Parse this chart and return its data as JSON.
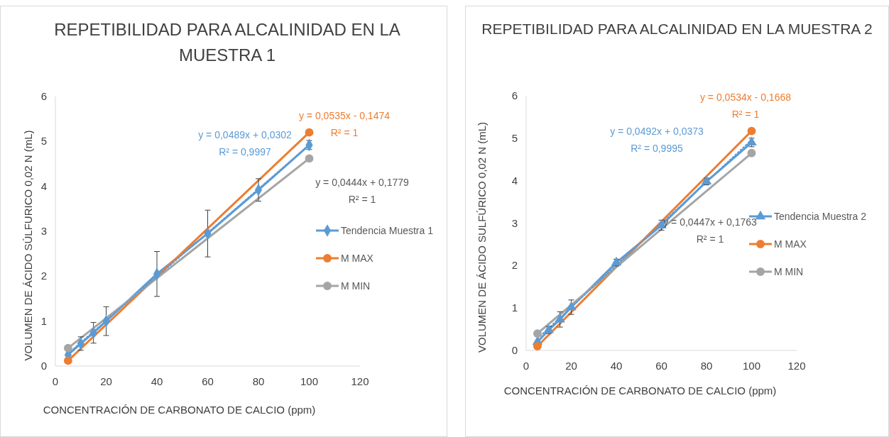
{
  "chart_data": [
    {
      "type": "line",
      "title": "REPETIBILIDAD PARA ALCALINIDAD EN LA MUESTRA 1",
      "xlabel": "CONCENTRACIÓN DE CARBONATO DE CALCIO (ppm)",
      "ylabel": "VOLUMEN DE ÁCIDO SÚLFURICO 0,02 N (mL)",
      "xlim": [
        0,
        120
      ],
      "xticks": [
        0,
        20,
        40,
        60,
        80,
        100,
        120
      ],
      "ylim": [
        0,
        6
      ],
      "yticks": [
        0,
        1,
        2,
        3,
        4,
        5,
        6
      ],
      "grid": false,
      "legend": "right",
      "series": [
        {
          "name": "Tendencia Muestra 1",
          "color": "#5b9bd5",
          "marker": "diamond",
          "x": [
            5,
            10,
            15,
            20,
            40,
            60,
            80,
            100
          ],
          "values": [
            0.25,
            0.5,
            0.74,
            1.0,
            2.05,
            2.95,
            3.92,
            4.92
          ],
          "errors": [
            0.1,
            0.15,
            0.23,
            0.32,
            0.5,
            0.52,
            0.25,
            0.1
          ]
        },
        {
          "name": "M MAX",
          "color": "#ed7d31",
          "marker": "circle",
          "x": [
            5,
            100
          ],
          "values": [
            0.12,
            5.2
          ]
        },
        {
          "name": "M MIN",
          "color": "#a5a5a5",
          "marker": "circle",
          "x": [
            5,
            100
          ],
          "values": [
            0.4,
            4.62
          ]
        },
        {
          "type": "line",
          "color": "#5b9bd5",
          "marker": "none",
          "line_style": "dotted",
          "x": [
            5,
            100
          ],
          "values": [
            0.28,
            4.92
          ]
        }
      ],
      "annotations": [
        "y = 0,0489x + 0,0302\nR² = 0,9997",
        "y = 0,0535x - 0,1474\nR² = 1",
        "y = 0,0444x + 0,1779\nR² = 1"
      ]
    },
    {
      "type": "line",
      "title": "REPETIBILIDAD PARA ALCALINIDAD EN LA MUESTRA 2",
      "xlabel": "CONCENTRACIÓN DE CARBONATO DE CALCIO (ppm)",
      "ylabel": "VOLUMEN DE ÁCIDO SULFÚRICO 0,02 N (mL)",
      "xlim": [
        0,
        120
      ],
      "xticks": [
        0,
        20,
        40,
        60,
        80,
        100,
        120
      ],
      "ylim": [
        0,
        6
      ],
      "yticks": [
        0,
        1,
        2,
        3,
        4,
        5,
        6
      ],
      "grid": false,
      "legend": "right",
      "series": [
        {
          "name": "Tendencia Muestra 2",
          "color": "#5b9bd5",
          "marker": "triangle",
          "x": [
            5,
            10,
            15,
            20,
            40,
            60,
            80,
            100
          ],
          "values": [
            0.2,
            0.48,
            0.73,
            1.02,
            2.07,
            2.95,
            3.98,
            4.9
          ],
          "errors": [
            null,
            0.08,
            0.18,
            0.17,
            0.08,
            0.12,
            0.08,
            0.1
          ]
        },
        {
          "name": "M MAX",
          "color": "#ed7d31",
          "marker": "circle",
          "x": [
            5,
            100
          ],
          "values": [
            0.1,
            5.17
          ]
        },
        {
          "name": "M MIN",
          "color": "#a5a5a5",
          "marker": "circle",
          "x": [
            5,
            100
          ],
          "values": [
            0.4,
            4.65
          ]
        },
        {
          "type": "line",
          "color": "#5b9bd5",
          "marker": "none",
          "line_style": "dotted",
          "x": [
            5,
            100
          ],
          "values": [
            0.28,
            4.96
          ]
        }
      ],
      "annotations": [
        "y = 0,0492x + 0,0373\nR² = 0,9995",
        "y = 0,0534x - 0,1668\nR² = 1",
        "y = 0,0447x + 0,1763\nR² = 1"
      ]
    }
  ]
}
